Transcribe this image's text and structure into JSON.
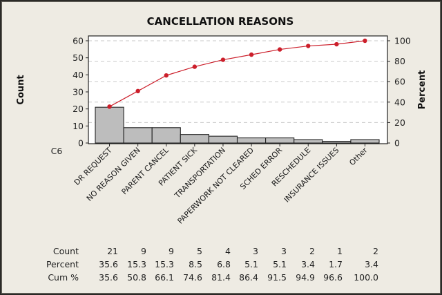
{
  "chart_data": {
    "type": "pareto",
    "title": "CANCELLATION REASONS",
    "xlabel": "C6",
    "ylabel_left": "Count",
    "ylabel_right": "Percent",
    "ylim_left": [
      0,
      60
    ],
    "yticks_left": [
      0,
      10,
      20,
      30,
      40,
      50,
      60
    ],
    "ylim_right": [
      0,
      100
    ],
    "yticks_right": [
      0,
      20,
      40,
      60,
      80,
      100
    ],
    "grid": "dashed horizontal at right-axis ticks",
    "categories": [
      "DR REQUEST",
      "NO REASON GIVEN",
      "PARENT CANCEL",
      "PATIENT SICK",
      "TRANSPORTATION",
      "PAPERWORK NOT CLEARED",
      "SCHED ERROR",
      "RESCHEDULE",
      "INSURANCE ISSUES",
      "Other"
    ],
    "series": [
      {
        "name": "Count",
        "kind": "bar",
        "values": [
          21,
          9,
          9,
          5,
          4,
          3,
          3,
          2,
          1,
          2
        ]
      },
      {
        "name": "Cum %",
        "kind": "line",
        "values": [
          35.6,
          50.8,
          66.1,
          74.6,
          81.4,
          86.4,
          91.5,
          94.9,
          96.6,
          100.0
        ]
      }
    ],
    "table": {
      "row_labels": [
        "Count",
        "Percent",
        "Cum %"
      ],
      "rows": [
        [
          "21",
          "9",
          "9",
          "5",
          "4",
          "3",
          "3",
          "2",
          "1",
          "2"
        ],
        [
          "35.6",
          "15.3",
          "15.3",
          "8.5",
          "6.8",
          "5.1",
          "5.1",
          "3.4",
          "1.7",
          "3.4"
        ],
        [
          "35.6",
          "50.8",
          "66.1",
          "74.6",
          "81.4",
          "86.4",
          "91.5",
          "94.9",
          "96.6",
          "100.0"
        ]
      ]
    },
    "colors": {
      "bar": "#bdbdbd",
      "line": "#cc1f2b",
      "grid": "#c8c8c8"
    }
  }
}
